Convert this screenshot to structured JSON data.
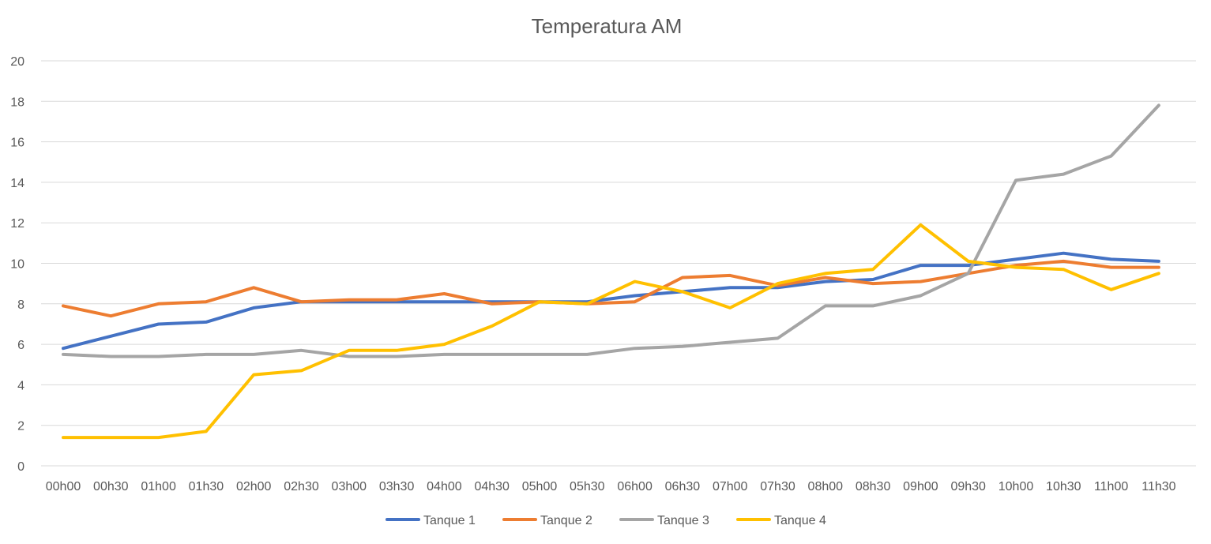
{
  "chart_data": {
    "type": "line",
    "title": "Temperatura AM",
    "xlabel": "",
    "ylabel": "",
    "ylim": [
      0,
      20
    ],
    "yticks": [
      "0",
      "2",
      "4",
      "6",
      "8",
      "10",
      "12",
      "14",
      "16",
      "18",
      "20"
    ],
    "grid": true,
    "legend_position": "bottom",
    "categories": [
      "00h00",
      "00h30",
      "01h00",
      "01h30",
      "02h00",
      "02h30",
      "03h00",
      "03h30",
      "04h00",
      "04h30",
      "05h00",
      "05h30",
      "06h00",
      "06h30",
      "07h00",
      "07h30",
      "08h00",
      "08h30",
      "09h00",
      "09h30",
      "10h00",
      "10h30",
      "11h00",
      "11h30"
    ],
    "series": [
      {
        "name": "Tanque 1",
        "color": "#4472c4",
        "values": [
          5.8,
          6.4,
          7.0,
          7.1,
          7.8,
          8.1,
          8.1,
          8.1,
          8.1,
          8.1,
          8.1,
          8.1,
          8.4,
          8.6,
          8.8,
          8.8,
          9.1,
          9.2,
          9.9,
          9.9,
          10.2,
          10.5,
          10.2,
          10.1
        ]
      },
      {
        "name": "Tanque 2",
        "color": "#ed7d31",
        "values": [
          7.9,
          7.4,
          8.0,
          8.1,
          8.8,
          8.1,
          8.2,
          8.2,
          8.5,
          8.0,
          8.1,
          8.0,
          8.1,
          9.3,
          9.4,
          8.9,
          9.3,
          9.0,
          9.1,
          9.5,
          9.9,
          10.1,
          9.8,
          9.8
        ]
      },
      {
        "name": "Tanque 3",
        "color": "#a5a5a5",
        "values": [
          5.5,
          5.4,
          5.4,
          5.5,
          5.5,
          5.7,
          5.4,
          5.4,
          5.5,
          5.5,
          5.5,
          5.5,
          5.8,
          5.9,
          6.1,
          6.3,
          7.9,
          7.9,
          8.4,
          9.5,
          14.1,
          14.4,
          15.3,
          17.8
        ]
      },
      {
        "name": "Tanque 4",
        "color": "#ffc000",
        "values": [
          1.4,
          1.4,
          1.4,
          1.7,
          4.5,
          4.7,
          5.7,
          5.7,
          6.0,
          6.9,
          8.1,
          8.0,
          9.1,
          8.6,
          7.8,
          9.0,
          9.5,
          9.7,
          11.9,
          10.1,
          9.8,
          9.7,
          8.7,
          9.5
        ]
      }
    ]
  }
}
